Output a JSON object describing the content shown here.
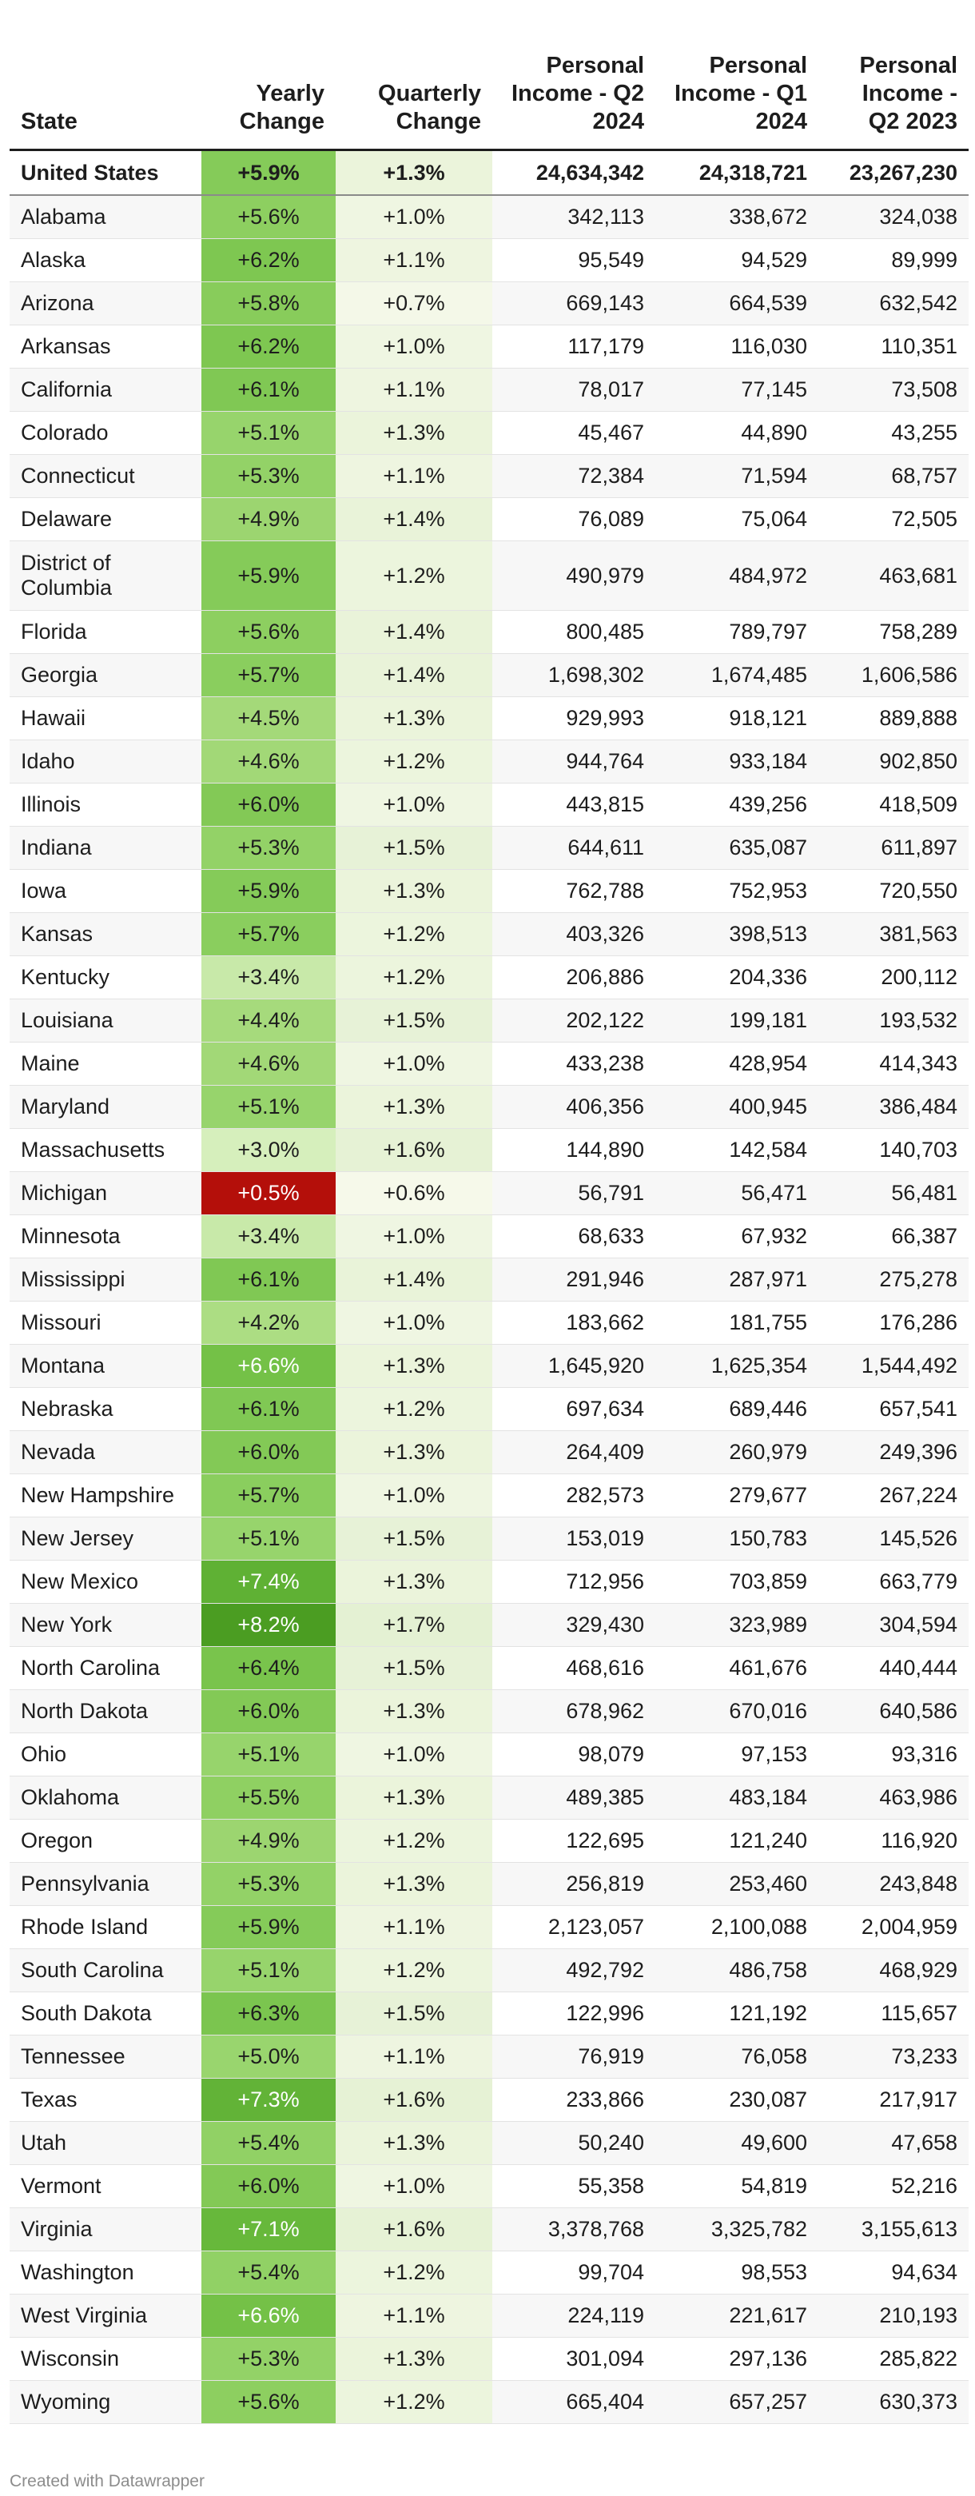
{
  "footer": "Created with Datawrapper",
  "colors": {
    "yearly_scale": [
      "#d6efbc",
      "#a8db7e",
      "#8dcf60",
      "#6cbd40",
      "#4b9d22"
    ],
    "yearly_negative": "#b40f0a",
    "quarterly_low": "#f6f9ea",
    "quarterly_high": "#e4f1d3"
  },
  "chart_data": {
    "type": "table",
    "columns": [
      "State",
      "Yearly Change",
      "Quarterly Change",
      "Personal Income - Q2 2024",
      "Personal Income - Q1 2024",
      "Personal Income - Q2 2023"
    ],
    "rows": [
      [
        "United States",
        "+5.9%",
        "+1.3%",
        "24,634,342",
        "24,318,721",
        "23,267,230"
      ],
      [
        "Alabama",
        "+5.6%",
        "+1.0%",
        "342,113",
        "338,672",
        "324,038"
      ],
      [
        "Alaska",
        "+6.2%",
        "+1.1%",
        "95,549",
        "94,529",
        "89,999"
      ],
      [
        "Arizona",
        "+5.8%",
        "+0.7%",
        "669,143",
        "664,539",
        "632,542"
      ],
      [
        "Arkansas",
        "+6.2%",
        "+1.0%",
        "117,179",
        "116,030",
        "110,351"
      ],
      [
        "California",
        "+6.1%",
        "+1.1%",
        "78,017",
        "77,145",
        "73,508"
      ],
      [
        "Colorado",
        "+5.1%",
        "+1.3%",
        "45,467",
        "44,890",
        "43,255"
      ],
      [
        "Connecticut",
        "+5.3%",
        "+1.1%",
        "72,384",
        "71,594",
        "68,757"
      ],
      [
        "Delaware",
        "+4.9%",
        "+1.4%",
        "76,089",
        "75,064",
        "72,505"
      ],
      [
        "District of Columbia",
        "+5.9%",
        "+1.2%",
        "490,979",
        "484,972",
        "463,681"
      ],
      [
        "Florida",
        "+5.6%",
        "+1.4%",
        "800,485",
        "789,797",
        "758,289"
      ],
      [
        "Georgia",
        "+5.7%",
        "+1.4%",
        "1,698,302",
        "1,674,485",
        "1,606,586"
      ],
      [
        "Hawaii",
        "+4.5%",
        "+1.3%",
        "929,993",
        "918,121",
        "889,888"
      ],
      [
        "Idaho",
        "+4.6%",
        "+1.2%",
        "944,764",
        "933,184",
        "902,850"
      ],
      [
        "Illinois",
        "+6.0%",
        "+1.0%",
        "443,815",
        "439,256",
        "418,509"
      ],
      [
        "Indiana",
        "+5.3%",
        "+1.5%",
        "644,611",
        "635,087",
        "611,897"
      ],
      [
        "Iowa",
        "+5.9%",
        "+1.3%",
        "762,788",
        "752,953",
        "720,550"
      ],
      [
        "Kansas",
        "+5.7%",
        "+1.2%",
        "403,326",
        "398,513",
        "381,563"
      ],
      [
        "Kentucky",
        "+3.4%",
        "+1.2%",
        "206,886",
        "204,336",
        "200,112"
      ],
      [
        "Louisiana",
        "+4.4%",
        "+1.5%",
        "202,122",
        "199,181",
        "193,532"
      ],
      [
        "Maine",
        "+4.6%",
        "+1.0%",
        "433,238",
        "428,954",
        "414,343"
      ],
      [
        "Maryland",
        "+5.1%",
        "+1.3%",
        "406,356",
        "400,945",
        "386,484"
      ],
      [
        "Massachusetts",
        "+3.0%",
        "+1.6%",
        "144,890",
        "142,584",
        "140,703"
      ],
      [
        "Michigan",
        "+0.5%",
        "+0.6%",
        "56,791",
        "56,471",
        "56,481"
      ],
      [
        "Minnesota",
        "+3.4%",
        "+1.0%",
        "68,633",
        "67,932",
        "66,387"
      ],
      [
        "Mississippi",
        "+6.1%",
        "+1.4%",
        "291,946",
        "287,971",
        "275,278"
      ],
      [
        "Missouri",
        "+4.2%",
        "+1.0%",
        "183,662",
        "181,755",
        "176,286"
      ],
      [
        "Montana",
        "+6.6%",
        "+1.3%",
        "1,645,920",
        "1,625,354",
        "1,544,492"
      ],
      [
        "Nebraska",
        "+6.1%",
        "+1.2%",
        "697,634",
        "689,446",
        "657,541"
      ],
      [
        "Nevada",
        "+6.0%",
        "+1.3%",
        "264,409",
        "260,979",
        "249,396"
      ],
      [
        "New Hampshire",
        "+5.7%",
        "+1.0%",
        "282,573",
        "279,677",
        "267,224"
      ],
      [
        "New Jersey",
        "+5.1%",
        "+1.5%",
        "153,019",
        "150,783",
        "145,526"
      ],
      [
        "New Mexico",
        "+7.4%",
        "+1.3%",
        "712,956",
        "703,859",
        "663,779"
      ],
      [
        "New York",
        "+8.2%",
        "+1.7%",
        "329,430",
        "323,989",
        "304,594"
      ],
      [
        "North Carolina",
        "+6.4%",
        "+1.5%",
        "468,616",
        "461,676",
        "440,444"
      ],
      [
        "North Dakota",
        "+6.0%",
        "+1.3%",
        "678,962",
        "670,016",
        "640,586"
      ],
      [
        "Ohio",
        "+5.1%",
        "+1.0%",
        "98,079",
        "97,153",
        "93,316"
      ],
      [
        "Oklahoma",
        "+5.5%",
        "+1.3%",
        "489,385",
        "483,184",
        "463,986"
      ],
      [
        "Oregon",
        "+4.9%",
        "+1.2%",
        "122,695",
        "121,240",
        "116,920"
      ],
      [
        "Pennsylvania",
        "+5.3%",
        "+1.3%",
        "256,819",
        "253,460",
        "243,848"
      ],
      [
        "Rhode Island",
        "+5.9%",
        "+1.1%",
        "2,123,057",
        "2,100,088",
        "2,004,959"
      ],
      [
        "South Carolina",
        "+5.1%",
        "+1.2%",
        "492,792",
        "486,758",
        "468,929"
      ],
      [
        "South Dakota",
        "+6.3%",
        "+1.5%",
        "122,996",
        "121,192",
        "115,657"
      ],
      [
        "Tennessee",
        "+5.0%",
        "+1.1%",
        "76,919",
        "76,058",
        "73,233"
      ],
      [
        "Texas",
        "+7.3%",
        "+1.6%",
        "233,866",
        "230,087",
        "217,917"
      ],
      [
        "Utah",
        "+5.4%",
        "+1.3%",
        "50,240",
        "49,600",
        "47,658"
      ],
      [
        "Vermont",
        "+6.0%",
        "+1.0%",
        "55,358",
        "54,819",
        "52,216"
      ],
      [
        "Virginia",
        "+7.1%",
        "+1.6%",
        "3,378,768",
        "3,325,782",
        "3,155,613"
      ],
      [
        "Washington",
        "+5.4%",
        "+1.2%",
        "99,704",
        "98,553",
        "94,634"
      ],
      [
        "West Virginia",
        "+6.6%",
        "+1.1%",
        "224,119",
        "221,617",
        "210,193"
      ],
      [
        "Wisconsin",
        "+5.3%",
        "+1.3%",
        "301,094",
        "297,136",
        "285,822"
      ],
      [
        "Wyoming",
        "+5.6%",
        "+1.2%",
        "665,404",
        "657,257",
        "630,373"
      ]
    ]
  }
}
